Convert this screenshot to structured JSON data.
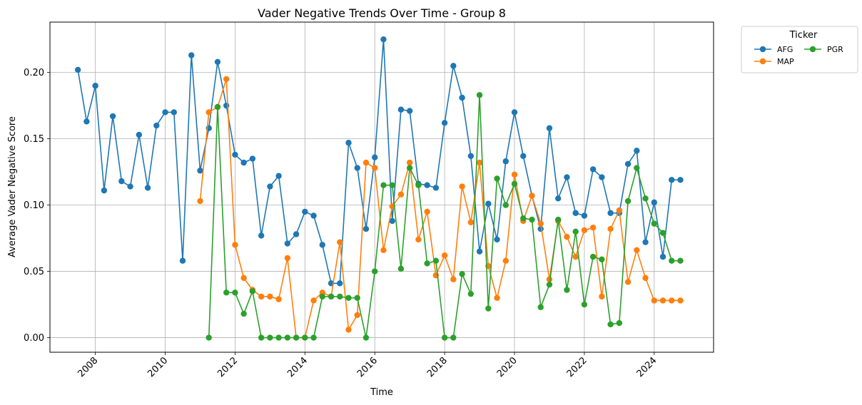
{
  "chart_data": {
    "type": "line",
    "title": "Vader Negative Trends Over Time - Group 8",
    "xlabel": "Time",
    "ylabel": "Average Vader Negative Score",
    "xlim": [
      2006.7,
      2025.7
    ],
    "ylim": [
      -0.011,
      0.238
    ],
    "x_ticks": [
      2008,
      2010,
      2012,
      2014,
      2016,
      2018,
      2020,
      2022,
      2024
    ],
    "x_tick_labels": [
      "2008",
      "2010",
      "2012",
      "2014",
      "2016",
      "2018",
      "2020",
      "2022",
      "2024"
    ],
    "y_ticks": [
      0.0,
      0.05,
      0.1,
      0.15,
      0.2
    ],
    "y_tick_labels": [
      "0.00",
      "0.05",
      "0.10",
      "0.15",
      "0.20"
    ],
    "grid": true,
    "legend": {
      "title": "Ticker",
      "placement": "outside-top-right",
      "columns": 2
    },
    "series": [
      {
        "name": "AFG",
        "color": "#1f77b4",
        "x": [
          2007.5,
          2007.75,
          2008.0,
          2008.25,
          2008.5,
          2008.75,
          2009.0,
          2009.25,
          2009.5,
          2009.75,
          2010.0,
          2010.25,
          2010.5,
          2010.75,
          2011.0,
          2011.25,
          2011.5,
          2011.75,
          2012.0,
          2012.25,
          2012.5,
          2012.75,
          2013.0,
          2013.25,
          2013.5,
          2013.75,
          2014.0,
          2014.25,
          2014.5,
          2014.75,
          2015.0,
          2015.25,
          2015.5,
          2015.75,
          2016.0,
          2016.25,
          2016.5,
          2016.75,
          2017.0,
          2017.25,
          2017.5,
          2017.75,
          2018.0,
          2018.25,
          2018.5,
          2018.75,
          2019.0,
          2019.25,
          2019.5,
          2019.75,
          2020.0,
          2020.25,
          2020.5,
          2020.75,
          2021.0,
          2021.25,
          2021.5,
          2021.75,
          2022.0,
          2022.25,
          2022.5,
          2022.75,
          2023.0,
          2023.25,
          2023.5,
          2023.75,
          2024.0,
          2024.25,
          2024.5,
          2024.75
        ],
        "y": [
          0.202,
          0.163,
          0.19,
          0.111,
          0.167,
          0.118,
          0.114,
          0.153,
          0.113,
          0.16,
          0.17,
          0.17,
          0.058,
          0.213,
          0.126,
          0.158,
          0.208,
          0.175,
          0.138,
          0.132,
          0.135,
          0.077,
          0.114,
          0.122,
          0.071,
          0.078,
          0.095,
          0.092,
          0.07,
          0.041,
          0.041,
          0.147,
          0.128,
          0.082,
          0.136,
          0.225,
          0.088,
          0.172,
          0.171,
          0.116,
          0.115,
          0.113,
          0.162,
          0.205,
          0.181,
          0.137,
          0.065,
          0.101,
          0.074,
          0.133,
          0.17,
          0.137,
          0.107,
          0.082,
          0.158,
          0.105,
          0.121,
          0.094,
          0.092,
          0.127,
          0.121,
          0.094,
          0.094,
          0.131,
          0.141,
          0.072,
          0.102,
          0.061,
          0.119,
          0.119
        ]
      },
      {
        "name": "MAP",
        "color": "#ff7f0e",
        "x": [
          2011.0,
          2011.25,
          2011.5,
          2011.75,
          2012.0,
          2012.25,
          2012.5,
          2012.75,
          2013.0,
          2013.25,
          2013.5,
          2013.75,
          2014.0,
          2014.25,
          2014.5,
          2014.75,
          2015.0,
          2015.25,
          2015.5,
          2015.75,
          2016.0,
          2016.25,
          2016.5,
          2016.75,
          2017.0,
          2017.25,
          2017.5,
          2017.75,
          2018.0,
          2018.25,
          2018.5,
          2018.75,
          2019.0,
          2019.25,
          2019.5,
          2019.75,
          2020.0,
          2020.25,
          2020.5,
          2020.75,
          2021.0,
          2021.25,
          2021.5,
          2021.75,
          2022.0,
          2022.25,
          2022.5,
          2022.75,
          2023.0,
          2023.25,
          2023.5,
          2023.75,
          2024.0,
          2024.25,
          2024.5,
          2024.75
        ],
        "y": [
          0.103,
          0.17,
          0.174,
          0.195,
          0.07,
          0.045,
          0.036,
          0.031,
          0.031,
          0.029,
          0.06,
          0.0,
          0.0,
          0.028,
          0.034,
          0.031,
          0.072,
          0.006,
          0.017,
          0.132,
          0.128,
          0.066,
          0.099,
          0.108,
          0.132,
          0.074,
          0.095,
          0.047,
          0.062,
          0.044,
          0.114,
          0.087,
          0.132,
          0.054,
          0.03,
          0.058,
          0.123,
          0.088,
          0.107,
          0.086,
          0.044,
          0.088,
          0.076,
          0.061,
          0.081,
          0.083,
          0.031,
          0.082,
          0.096,
          0.042,
          0.066,
          0.045,
          0.028,
          0.028,
          0.028,
          0.028
        ]
      },
      {
        "name": "PGR",
        "color": "#2ca02c",
        "x": [
          2011.25,
          2011.5,
          2011.75,
          2012.0,
          2012.25,
          2012.5,
          2012.75,
          2013.0,
          2013.25,
          2013.5,
          2013.75,
          2014.0,
          2014.25,
          2014.5,
          2014.75,
          2015.0,
          2015.25,
          2015.5,
          2015.75,
          2016.0,
          2016.25,
          2016.5,
          2016.75,
          2017.0,
          2017.25,
          2017.5,
          2017.75,
          2018.0,
          2018.25,
          2018.5,
          2018.75,
          2019.0,
          2019.25,
          2019.5,
          2019.75,
          2020.0,
          2020.25,
          2020.5,
          2020.75,
          2021.0,
          2021.25,
          2021.5,
          2021.75,
          2022.0,
          2022.25,
          2022.5,
          2022.75,
          2023.0,
          2023.25,
          2023.5,
          2023.75,
          2024.0,
          2024.25,
          2024.5,
          2024.75
        ],
        "y": [
          0.0,
          0.174,
          0.034,
          0.034,
          0.018,
          0.035,
          0.0,
          0.0,
          0.0,
          0.0,
          0.0,
          0.0,
          0.0,
          0.031,
          0.031,
          0.031,
          0.03,
          0.03,
          0.0,
          0.05,
          0.115,
          0.115,
          0.052,
          0.128,
          0.115,
          0.056,
          0.058,
          0.0,
          0.0,
          0.048,
          0.033,
          0.183,
          0.022,
          0.12,
          0.1,
          0.116,
          0.09,
          0.089,
          0.023,
          0.04,
          0.089,
          0.036,
          0.08,
          0.025,
          0.061,
          0.059,
          0.01,
          0.011,
          0.103,
          0.128,
          0.105,
          0.086,
          0.079,
          0.058,
          0.058
        ]
      }
    ]
  }
}
